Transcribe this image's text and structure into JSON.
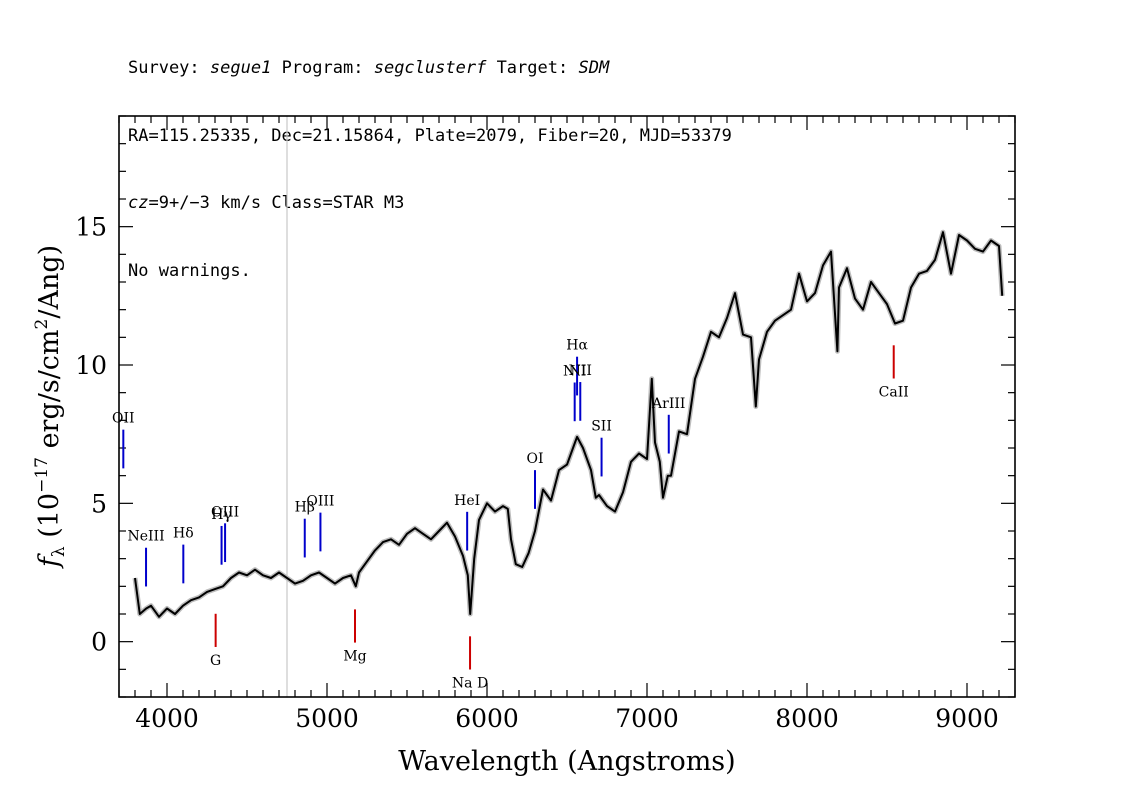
{
  "header": {
    "survey_label": "Survey:",
    "survey": "segue1",
    "program_label": "Program:",
    "program": "segclusterf",
    "target_label": "Target:",
    "target": "SDM",
    "line2": "RA=115.25335, Dec=21.15864, Plate=2079, Fiber=20, MJD=53379",
    "cz_label": "cz",
    "cz_value": "=9+/−3",
    "cz_rest": " km/s Class=STAR M3",
    "line4": "No warnings."
  },
  "chart_data": {
    "type": "line",
    "xlabel": "Wavelength (Angstroms)",
    "ylabel_parts": {
      "f": "f",
      "sub": "λ",
      "open": " (10",
      "exp": "−17",
      "unit": " erg/s/cm",
      "exp2": "2",
      "close": "/Ang)"
    },
    "xlim": [
      3700,
      9300
    ],
    "ylim": [
      -2,
      19
    ],
    "xticks": [
      4000,
      5000,
      6000,
      7000,
      8000,
      9000
    ],
    "yticks": [
      0,
      5,
      10,
      15
    ],
    "grid": false,
    "vertical_reference_line": 4750,
    "spectrum": {
      "x": [
        3800,
        3830,
        3870,
        3900,
        3950,
        4000,
        4050,
        4100,
        4150,
        4200,
        4250,
        4300,
        4350,
        4400,
        4450,
        4500,
        4550,
        4600,
        4650,
        4700,
        4750,
        4800,
        4850,
        4900,
        4950,
        5000,
        5050,
        5100,
        5150,
        5180,
        5200,
        5250,
        5300,
        5350,
        5400,
        5450,
        5500,
        5550,
        5600,
        5650,
        5700,
        5750,
        5800,
        5850,
        5880,
        5895,
        5920,
        5950,
        6000,
        6050,
        6100,
        6130,
        6150,
        6180,
        6220,
        6260,
        6300,
        6350,
        6400,
        6450,
        6500,
        6550,
        6563,
        6600,
        6650,
        6680,
        6700,
        6750,
        6800,
        6850,
        6900,
        6950,
        7000,
        7030,
        7050,
        7080,
        7100,
        7130,
        7150,
        7200,
        7250,
        7300,
        7350,
        7400,
        7450,
        7500,
        7550,
        7600,
        7650,
        7680,
        7700,
        7750,
        7800,
        7850,
        7900,
        7950,
        8000,
        8050,
        8100,
        8150,
        8190,
        8200,
        8250,
        8300,
        8350,
        8400,
        8450,
        8500,
        8550,
        8600,
        8650,
        8700,
        8750,
        8800,
        8850,
        8900,
        8950,
        9000,
        9050,
        9100,
        9150,
        9200,
        9220
      ],
      "y": [
        2.3,
        1.0,
        1.2,
        1.3,
        0.9,
        1.2,
        1.0,
        1.3,
        1.5,
        1.6,
        1.8,
        1.9,
        2.0,
        2.3,
        2.5,
        2.4,
        2.6,
        2.4,
        2.3,
        2.5,
        2.3,
        2.1,
        2.2,
        2.4,
        2.5,
        2.3,
        2.1,
        2.3,
        2.4,
        2.0,
        2.5,
        2.9,
        3.3,
        3.6,
        3.7,
        3.5,
        3.9,
        4.1,
        3.9,
        3.7,
        4.0,
        4.3,
        3.8,
        3.1,
        2.4,
        1.0,
        3.0,
        4.4,
        5.0,
        4.7,
        4.9,
        4.8,
        3.7,
        2.8,
        2.7,
        3.2,
        4.0,
        5.5,
        5.1,
        6.2,
        6.4,
        7.2,
        7.4,
        7.0,
        6.2,
        5.2,
        5.3,
        4.9,
        4.7,
        5.4,
        6.5,
        6.8,
        6.6,
        9.5,
        7.2,
        6.5,
        5.2,
        6.0,
        6.0,
        7.6,
        7.5,
        9.5,
        10.3,
        11.2,
        11.0,
        11.7,
        12.6,
        11.1,
        11.0,
        8.5,
        10.2,
        11.2,
        11.6,
        11.8,
        12.0,
        13.3,
        12.3,
        12.6,
        13.6,
        14.1,
        10.5,
        12.8,
        13.5,
        12.4,
        12.0,
        13.0,
        12.6,
        12.2,
        11.5,
        11.6,
        12.8,
        13.3,
        13.4,
        13.8,
        14.8,
        13.3,
        14.7,
        14.5,
        14.2,
        14.1,
        14.5,
        14.3,
        12.5
      ]
    },
    "lines": [
      {
        "name": "OII",
        "x": 3727,
        "color": "#0000cc"
      },
      {
        "name": "NeIII",
        "x": 3869,
        "color": "#0000cc"
      },
      {
        "name": "Hδ",
        "x": 4102,
        "color": "#0000cc"
      },
      {
        "name": "Hγ",
        "x": 4341,
        "color": "#0000cc"
      },
      {
        "name": "OIII",
        "x": 4363,
        "color": "#0000cc"
      },
      {
        "name": "Hβ",
        "x": 4861,
        "color": "#0000cc"
      },
      {
        "name": "OIII",
        "x": 4959,
        "color": "#0000cc"
      },
      {
        "name": "HeI",
        "x": 5876,
        "color": "#0000cc"
      },
      {
        "name": "OI",
        "x": 6300,
        "color": "#0000cc"
      },
      {
        "name": "NII",
        "x": 6548,
        "color": "#0000cc"
      },
      {
        "name": "Hα",
        "x": 6563,
        "color": "#0000cc"
      },
      {
        "name": "NII",
        "x": 6583,
        "color": "#0000cc"
      },
      {
        "name": "SII",
        "x": 6716,
        "color": "#0000cc"
      },
      {
        "name": "ArIII",
        "x": 7136,
        "color": "#0000cc"
      },
      {
        "name": "G",
        "x": 4304,
        "color": "#cc0000"
      },
      {
        "name": "Mg",
        "x": 5175,
        "color": "#cc0000"
      },
      {
        "name": "Na D",
        "x": 5894,
        "color": "#cc0000"
      },
      {
        "name": "CaII",
        "x": 8542,
        "color": "#cc0000"
      }
    ]
  }
}
